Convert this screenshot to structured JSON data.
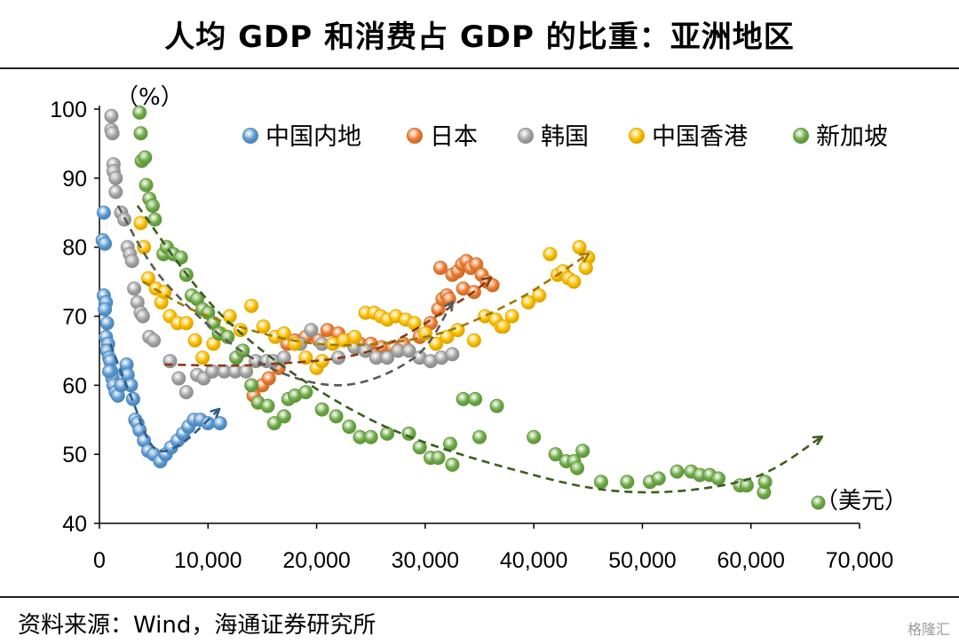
{
  "title": "人均 GDP 和消费占 GDP 的比重：亚洲地区",
  "source": "资料来源：Wind，海通证券研究所",
  "watermark": "格隆汇",
  "chart_data": {
    "type": "scatter",
    "y_unit_label": "（%）",
    "x_unit_label": "（美元）",
    "xlim": [
      0,
      70000
    ],
    "ylim": [
      40,
      100
    ],
    "x_ticks": [
      0,
      10000,
      20000,
      30000,
      40000,
      50000,
      60000,
      70000
    ],
    "x_tick_labels": [
      "0",
      "10,000",
      "20,000",
      "30,000",
      "40,000",
      "50,000",
      "60,000",
      "70,000"
    ],
    "y_ticks": [
      40,
      50,
      60,
      70,
      80,
      90,
      100
    ],
    "y_tick_labels": [
      "40",
      "50",
      "60",
      "70",
      "80",
      "90",
      "100"
    ],
    "legend_position": "top",
    "series": [
      {
        "name": "中国内地",
        "color": "#5B9BD5",
        "points": [
          [
            400,
            85
          ],
          [
            300,
            81
          ],
          [
            500,
            80.5
          ],
          [
            400,
            73
          ],
          [
            600,
            72
          ],
          [
            500,
            71
          ],
          [
            700,
            69
          ],
          [
            600,
            67
          ],
          [
            800,
            66
          ],
          [
            700,
            65
          ],
          [
            900,
            64
          ],
          [
            1000,
            63.5
          ],
          [
            1100,
            62
          ],
          [
            1200,
            61
          ],
          [
            1300,
            60
          ],
          [
            900,
            62
          ],
          [
            1500,
            59
          ],
          [
            1700,
            58.5
          ],
          [
            2000,
            60
          ],
          [
            2400,
            62
          ],
          [
            2500,
            63
          ],
          [
            2600,
            61.5
          ],
          [
            2900,
            60
          ],
          [
            3100,
            58
          ],
          [
            3300,
            55
          ],
          [
            3500,
            54.5
          ],
          [
            3700,
            53.5
          ],
          [
            4100,
            52
          ],
          [
            4500,
            50.5
          ],
          [
            5000,
            50
          ],
          [
            5600,
            49
          ],
          [
            6100,
            50
          ],
          [
            6600,
            51
          ],
          [
            7200,
            52
          ],
          [
            7700,
            53
          ],
          [
            8200,
            54
          ],
          [
            8700,
            55
          ],
          [
            9300,
            55
          ],
          [
            10000,
            54.5
          ],
          [
            11100,
            54.5
          ]
        ]
      },
      {
        "name": "日本",
        "color": "#ED7D31",
        "points": [
          [
            14200,
            58.5
          ],
          [
            15000,
            60
          ],
          [
            15600,
            61
          ],
          [
            16500,
            62.5
          ],
          [
            17300,
            66
          ],
          [
            18000,
            66.5
          ],
          [
            19000,
            67
          ],
          [
            20200,
            66.5
          ],
          [
            21000,
            68
          ],
          [
            22000,
            67.5
          ],
          [
            23000,
            66.5
          ],
          [
            24000,
            66
          ],
          [
            25000,
            66
          ],
          [
            26000,
            65.5
          ],
          [
            27000,
            65.5
          ],
          [
            28000,
            66
          ],
          [
            29500,
            67
          ],
          [
            30500,
            69
          ],
          [
            31200,
            71
          ],
          [
            31600,
            72.5
          ],
          [
            32000,
            73
          ],
          [
            32500,
            76
          ],
          [
            33000,
            76.5
          ],
          [
            33400,
            77.5
          ],
          [
            33800,
            78
          ],
          [
            34200,
            77
          ],
          [
            34700,
            77.5
          ],
          [
            35200,
            76
          ],
          [
            35700,
            75
          ],
          [
            36200,
            74.5
          ],
          [
            31400,
            77
          ],
          [
            32200,
            72.5
          ],
          [
            33500,
            74
          ],
          [
            34500,
            73.5
          ]
        ]
      },
      {
        "name": "韩国",
        "color": "#A5A5A5",
        "points": [
          [
            1100,
            99
          ],
          [
            1100,
            97
          ],
          [
            1200,
            96.5
          ],
          [
            1300,
            92
          ],
          [
            1300,
            91
          ],
          [
            1500,
            90
          ],
          [
            1500,
            88
          ],
          [
            2000,
            85
          ],
          [
            2300,
            84
          ],
          [
            2600,
            80
          ],
          [
            2800,
            79
          ],
          [
            3000,
            78
          ],
          [
            3200,
            74
          ],
          [
            3500,
            72
          ],
          [
            3800,
            70.5
          ],
          [
            4000,
            70
          ],
          [
            4600,
            67
          ],
          [
            5000,
            66.5
          ],
          [
            6500,
            63.5
          ],
          [
            7300,
            61
          ],
          [
            8000,
            59
          ],
          [
            9000,
            61.5
          ],
          [
            9600,
            61
          ],
          [
            10400,
            62
          ],
          [
            11500,
            62
          ],
          [
            12500,
            62
          ],
          [
            13500,
            62
          ],
          [
            14400,
            63.5
          ],
          [
            15400,
            63.5
          ],
          [
            16000,
            63.5
          ],
          [
            17000,
            64
          ],
          [
            18500,
            66
          ],
          [
            19500,
            68
          ],
          [
            20500,
            66
          ],
          [
            22000,
            64
          ],
          [
            23500,
            65.5
          ],
          [
            24500,
            65
          ],
          [
            25500,
            64
          ],
          [
            26500,
            64
          ],
          [
            27500,
            65
          ],
          [
            28500,
            65
          ],
          [
            29500,
            64
          ],
          [
            30500,
            63.5
          ],
          [
            31500,
            64
          ],
          [
            32500,
            64.5
          ]
        ]
      },
      {
        "name": "中国香港",
        "color": "#FFC000",
        "points": [
          [
            3800,
            83.5
          ],
          [
            4100,
            80
          ],
          [
            4500,
            75.5
          ],
          [
            5200,
            74
          ],
          [
            5700,
            72
          ],
          [
            6000,
            73.5
          ],
          [
            6500,
            70
          ],
          [
            7200,
            69
          ],
          [
            8000,
            69
          ],
          [
            8800,
            66.5
          ],
          [
            9500,
            64
          ],
          [
            10500,
            66
          ],
          [
            11200,
            67.5
          ],
          [
            12000,
            70
          ],
          [
            13000,
            68
          ],
          [
            14000,
            71.5
          ],
          [
            15100,
            68.5
          ],
          [
            16200,
            67
          ],
          [
            17000,
            67.5
          ],
          [
            18000,
            66
          ],
          [
            19000,
            64
          ],
          [
            20000,
            62.5
          ],
          [
            20500,
            63.5
          ],
          [
            21500,
            66
          ],
          [
            22500,
            66.5
          ],
          [
            23500,
            67
          ],
          [
            24500,
            70.5
          ],
          [
            25300,
            70.5
          ],
          [
            25900,
            70
          ],
          [
            26500,
            69.5
          ],
          [
            27300,
            70
          ],
          [
            28200,
            69.5
          ],
          [
            29000,
            69
          ],
          [
            30000,
            67.5
          ],
          [
            31000,
            66
          ],
          [
            32000,
            67
          ],
          [
            33000,
            68
          ],
          [
            34500,
            66.5
          ],
          [
            35500,
            70
          ],
          [
            36500,
            69.5
          ],
          [
            37000,
            68.5
          ],
          [
            38000,
            70
          ],
          [
            39500,
            72
          ],
          [
            40500,
            73
          ],
          [
            41500,
            79
          ],
          [
            42200,
            76
          ],
          [
            42700,
            76.5
          ],
          [
            43200,
            75.5
          ],
          [
            43700,
            75
          ],
          [
            44200,
            80
          ],
          [
            45000,
            78.5
          ],
          [
            44800,
            77
          ],
          [
            37200,
            68.5
          ]
        ]
      },
      {
        "name": "新加坡",
        "color": "#70AD47",
        "points": [
          [
            3700,
            99.5
          ],
          [
            3800,
            96.5
          ],
          [
            3900,
            92.5
          ],
          [
            4200,
            93
          ],
          [
            4300,
            89
          ],
          [
            4600,
            87
          ],
          [
            4900,
            86
          ],
          [
            5100,
            84
          ],
          [
            5900,
            79
          ],
          [
            6200,
            80
          ],
          [
            6800,
            79
          ],
          [
            7500,
            78.5
          ],
          [
            8000,
            76
          ],
          [
            8500,
            73
          ],
          [
            9000,
            72.5
          ],
          [
            9500,
            71
          ],
          [
            10000,
            70.5
          ],
          [
            10500,
            69
          ],
          [
            11000,
            67.5
          ],
          [
            11800,
            67
          ],
          [
            12600,
            64
          ],
          [
            13200,
            65
          ],
          [
            14000,
            60
          ],
          [
            14600,
            57.5
          ],
          [
            15500,
            57
          ],
          [
            16100,
            54.5
          ],
          [
            17000,
            55.5
          ],
          [
            17400,
            58
          ],
          [
            18000,
            58.5
          ],
          [
            19000,
            59
          ],
          [
            20500,
            56.5
          ],
          [
            21800,
            55.5
          ],
          [
            23000,
            54
          ],
          [
            24000,
            52.5
          ],
          [
            25000,
            52.5
          ],
          [
            26500,
            53
          ],
          [
            28500,
            53
          ],
          [
            29500,
            51
          ],
          [
            30500,
            49.5
          ],
          [
            31200,
            49.5
          ],
          [
            32300,
            51.5
          ],
          [
            32500,
            48.5
          ],
          [
            33500,
            58
          ],
          [
            34600,
            58
          ],
          [
            35000,
            52.5
          ],
          [
            36600,
            57
          ],
          [
            40000,
            52.5
          ],
          [
            42000,
            50
          ],
          [
            43000,
            49
          ],
          [
            43700,
            49
          ],
          [
            44000,
            48
          ],
          [
            44500,
            50.5
          ],
          [
            46200,
            46
          ],
          [
            48600,
            46
          ],
          [
            50700,
            46
          ],
          [
            51500,
            46.5
          ],
          [
            53200,
            47.5
          ],
          [
            54500,
            47.5
          ],
          [
            55300,
            47
          ],
          [
            56200,
            47
          ],
          [
            57000,
            46.5
          ],
          [
            59000,
            45.5
          ],
          [
            59600,
            45.5
          ],
          [
            61200,
            44.5
          ],
          [
            61300,
            46
          ],
          [
            66200,
            43
          ]
        ]
      }
    ],
    "trend_arrows": [
      {
        "series": "中国内地",
        "color": "#2E5D8A",
        "points": [
          [
            1000,
            66
          ],
          [
            3000,
            58
          ],
          [
            5000,
            51
          ],
          [
            7500,
            51.5
          ],
          [
            11000,
            56.5
          ]
        ]
      },
      {
        "series": "日本",
        "color": "#8B3A12",
        "points": [
          [
            6000,
            63
          ],
          [
            15000,
            63
          ],
          [
            25000,
            65
          ],
          [
            33000,
            72
          ],
          [
            36000,
            75.5
          ]
        ]
      },
      {
        "series": "韩国",
        "color": "#595959",
        "points": [
          [
            1700,
            86
          ],
          [
            6000,
            75
          ],
          [
            14000,
            64
          ],
          [
            22000,
            60
          ],
          [
            29000,
            64
          ],
          [
            32500,
            72
          ]
        ]
      },
      {
        "series": "中国香港",
        "color": "#A07800",
        "points": [
          [
            4000,
            75
          ],
          [
            10000,
            70
          ],
          [
            20000,
            66
          ],
          [
            30000,
            67
          ],
          [
            38000,
            72
          ],
          [
            45000,
            79
          ]
        ]
      },
      {
        "series": "新加坡",
        "color": "#3B5E1F",
        "points": [
          [
            3500,
            86
          ],
          [
            12000,
            69
          ],
          [
            25000,
            55
          ],
          [
            40000,
            47
          ],
          [
            50000,
            44.5
          ],
          [
            60000,
            46.5
          ],
          [
            66500,
            52.5
          ]
        ]
      }
    ]
  }
}
